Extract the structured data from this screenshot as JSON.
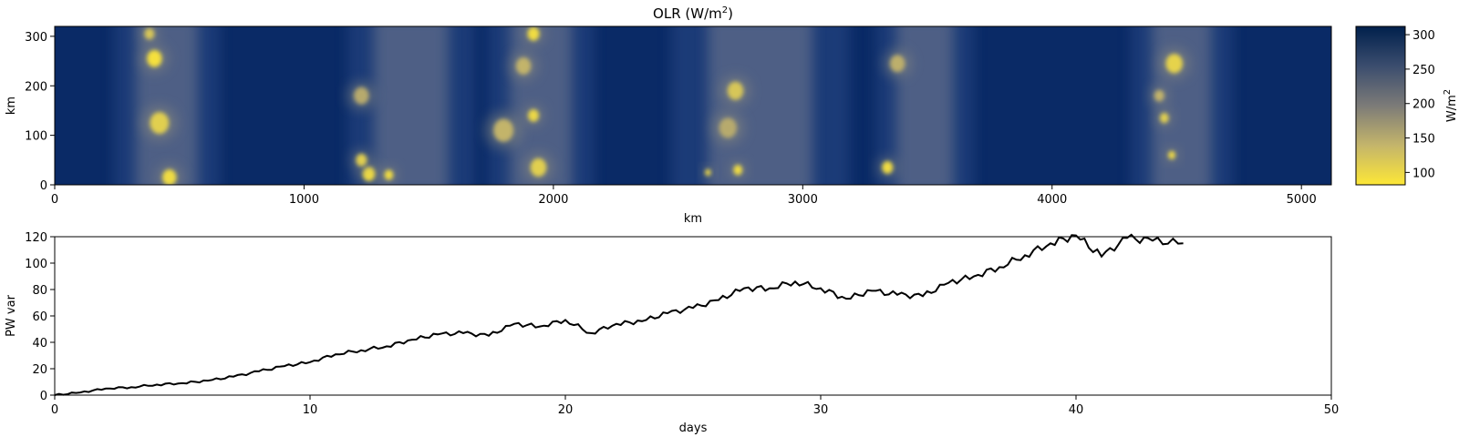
{
  "chart_data": [
    {
      "type": "heatmap",
      "title_main": "OLR (W/m",
      "title_sup": "2",
      "title_end": ")",
      "xlabel": "km",
      "ylabel": "km",
      "xlim": [
        0,
        5120
      ],
      "ylim": [
        0,
        320
      ],
      "xticks": [
        "0",
        "1000",
        "2000",
        "3000",
        "4000",
        "5000"
      ],
      "yticks": [
        "0",
        "100",
        "200",
        "300"
      ],
      "colormap": "cividis",
      "colorbar": {
        "label_main": "W/m",
        "label_sup": "2",
        "range": [
          82,
          312
        ],
        "ticks": [
          "100",
          "150",
          "200",
          "250",
          "300"
        ],
        "low_color": "#fde737",
        "mid_color": "#7c7b78",
        "high_color": "#00204c"
      },
      "cloud_bands_km": [
        {
          "center": 450,
          "width": 250
        },
        {
          "center": 1430,
          "width": 300
        },
        {
          "center": 1950,
          "width": 250
        },
        {
          "center": 2830,
          "width": 420
        },
        {
          "center": 3490,
          "width": 230
        },
        {
          "center": 4520,
          "width": 240
        }
      ],
      "cells": [
        {
          "x": 400,
          "y": 255,
          "r": 30,
          "olr": 90
        },
        {
          "x": 420,
          "y": 125,
          "r": 38,
          "olr": 110
        },
        {
          "x": 460,
          "y": 15,
          "r": 28,
          "olr": 95
        },
        {
          "x": 380,
          "y": 305,
          "r": 20,
          "olr": 120
        },
        {
          "x": 1260,
          "y": 22,
          "r": 25,
          "olr": 95
        },
        {
          "x": 1340,
          "y": 20,
          "r": 18,
          "olr": 95
        },
        {
          "x": 1230,
          "y": 50,
          "r": 22,
          "olr": 110
        },
        {
          "x": 1230,
          "y": 180,
          "r": 30,
          "olr": 150
        },
        {
          "x": 1940,
          "y": 35,
          "r": 32,
          "olr": 110
        },
        {
          "x": 1920,
          "y": 140,
          "r": 22,
          "olr": 100
        },
        {
          "x": 1920,
          "y": 305,
          "r": 24,
          "olr": 95
        },
        {
          "x": 1880,
          "y": 240,
          "r": 30,
          "olr": 140
        },
        {
          "x": 1800,
          "y": 110,
          "r": 40,
          "olr": 140
        },
        {
          "x": 2730,
          "y": 190,
          "r": 32,
          "olr": 120
        },
        {
          "x": 2740,
          "y": 30,
          "r": 18,
          "olr": 95
        },
        {
          "x": 2620,
          "y": 25,
          "r": 12,
          "olr": 100
        },
        {
          "x": 2700,
          "y": 115,
          "r": 35,
          "olr": 150
        },
        {
          "x": 3340,
          "y": 35,
          "r": 22,
          "olr": 95
        },
        {
          "x": 3380,
          "y": 245,
          "r": 30,
          "olr": 145
        },
        {
          "x": 4490,
          "y": 245,
          "r": 34,
          "olr": 105
        },
        {
          "x": 4450,
          "y": 135,
          "r": 18,
          "olr": 110
        },
        {
          "x": 4480,
          "y": 60,
          "r": 15,
          "olr": 100
        },
        {
          "x": 4430,
          "y": 180,
          "r": 20,
          "olr": 140
        }
      ]
    },
    {
      "type": "line",
      "xlabel": "days",
      "ylabel": "PW var",
      "xlim": [
        0,
        50
      ],
      "ylim": [
        0,
        120
      ],
      "xticks": [
        "0",
        "10",
        "20",
        "30",
        "40",
        "50"
      ],
      "yticks": [
        "0",
        "20",
        "40",
        "60",
        "80",
        "100",
        "120"
      ],
      "x": [
        0,
        1,
        2,
        3,
        4,
        5,
        6,
        7,
        8,
        9,
        10,
        11,
        12,
        13,
        14,
        15,
        16,
        17,
        18,
        19,
        20,
        21,
        22,
        23,
        24,
        25,
        26,
        27,
        28,
        29,
        30,
        31,
        32,
        33,
        34,
        35,
        36,
        37,
        38,
        39,
        40,
        41,
        42,
        43,
        44.2
      ],
      "y": [
        0,
        2,
        5,
        6,
        8,
        9,
        11,
        14,
        18,
        22,
        25,
        31,
        34,
        37,
        42,
        46,
        47,
        45,
        54,
        52,
        57,
        47,
        54,
        56,
        62,
        66,
        72,
        81,
        81,
        86,
        81,
        73,
        79,
        76,
        75,
        85,
        90,
        97,
        106,
        115,
        121,
        105,
        119,
        117,
        115
      ]
    }
  ]
}
